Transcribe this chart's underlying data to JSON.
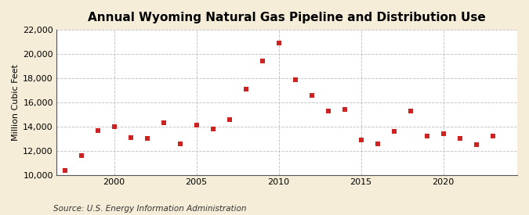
{
  "title": "Annual Wyoming Natural Gas Pipeline and Distribution Use",
  "ylabel": "Million Cubic Feet",
  "source": "Source: U.S. Energy Information Administration",
  "background_color": "#f5edd8",
  "plot_bg_color": "#ffffff",
  "dot_color": "#cc2222",
  "years": [
    1997,
    1998,
    1999,
    2000,
    2001,
    2002,
    2003,
    2004,
    2005,
    2006,
    2007,
    2008,
    2009,
    2010,
    2011,
    2012,
    2013,
    2014,
    2015,
    2016,
    2017,
    2018,
    2019,
    2020,
    2021,
    2022,
    2023
  ],
  "values": [
    10400,
    11600,
    13700,
    14000,
    13100,
    13000,
    14300,
    12600,
    14100,
    13800,
    14600,
    17100,
    19400,
    20900,
    17900,
    16600,
    15300,
    15400,
    12900,
    12600,
    13600,
    15300,
    13200,
    13400,
    13000,
    12500,
    13200
  ],
  "ylim": [
    10000,
    22000
  ],
  "yticks": [
    10000,
    12000,
    14000,
    16000,
    18000,
    20000,
    22000
  ],
  "xlim": [
    1996.5,
    2024.5
  ],
  "xticks": [
    2000,
    2005,
    2010,
    2015,
    2020
  ],
  "grid_color": "#aaaaaa",
  "title_fontsize": 11,
  "tick_fontsize": 8,
  "ylabel_fontsize": 8,
  "source_fontsize": 7.5
}
